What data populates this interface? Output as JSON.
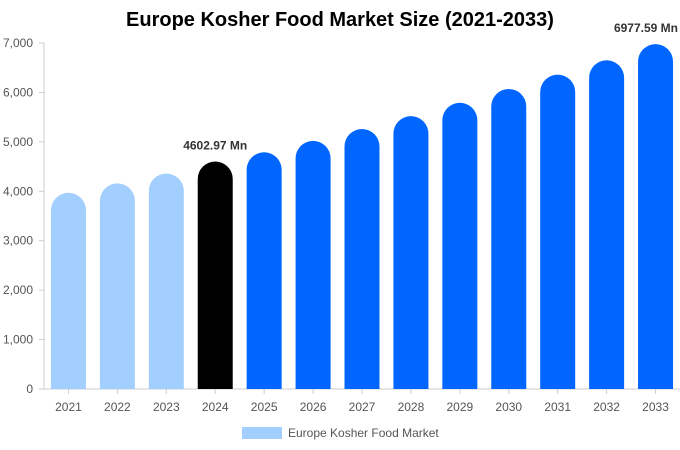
{
  "chart_data": {
    "type": "bar",
    "title": "Europe Kosher Food Market Size (2021-2033)",
    "xlabel": "",
    "ylabel": "",
    "categories": [
      "2021",
      "2022",
      "2023",
      "2024",
      "2025",
      "2026",
      "2027",
      "2028",
      "2029",
      "2030",
      "2031",
      "2032",
      "2033"
    ],
    "series": [
      {
        "name": "Europe Kosher Food Market",
        "values": [
          3970,
          4160,
          4360,
          4602.97,
          4790,
          5020,
          5260,
          5520,
          5790,
          6070,
          6360,
          6650,
          6977.59
        ]
      }
    ],
    "ylim": [
      0,
      7000
    ],
    "yticks": [
      "0",
      "1,000",
      "2,000",
      "3,000",
      "4,000",
      "5,000",
      "6,000",
      "7,000"
    ],
    "data_labels": [
      {
        "index": 3,
        "text": "4602.97 Mn"
      },
      {
        "index": 12,
        "text": "6977.59 Mn"
      }
    ],
    "colors": {
      "historical": "#a3cfff",
      "current": "#000000",
      "forecast": "#0066ff"
    },
    "bar_colors": [
      "historical",
      "historical",
      "historical",
      "current",
      "forecast",
      "forecast",
      "forecast",
      "forecast",
      "forecast",
      "forecast",
      "forecast",
      "forecast",
      "forecast"
    ],
    "legend": {
      "position": "bottom",
      "color": "#a3cfff"
    },
    "grid": false
  }
}
